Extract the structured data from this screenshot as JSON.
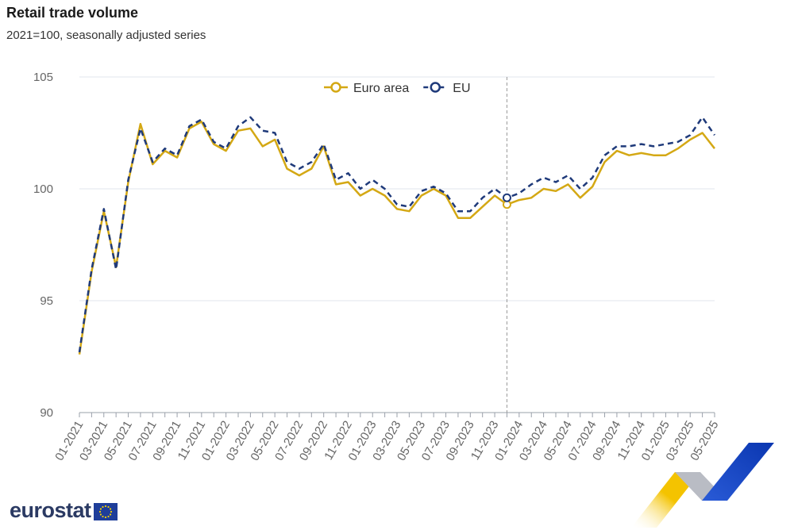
{
  "chart_data": {
    "type": "line",
    "title": "Retail trade volume",
    "subtitle": "2021=100, seasonally adjusted series",
    "xlabel": "",
    "ylabel": "",
    "ylim": [
      90,
      105
    ],
    "yticks": [
      90,
      95,
      100,
      105
    ],
    "grid": true,
    "legend_position": "top-center",
    "x": [
      "01-2021",
      "02-2021",
      "03-2021",
      "04-2021",
      "05-2021",
      "06-2021",
      "07-2021",
      "08-2021",
      "09-2021",
      "10-2021",
      "11-2021",
      "12-2021",
      "01-2022",
      "02-2022",
      "03-2022",
      "04-2022",
      "05-2022",
      "06-2022",
      "07-2022",
      "08-2022",
      "09-2022",
      "10-2022",
      "11-2022",
      "12-2022",
      "01-2023",
      "02-2023",
      "03-2023",
      "04-2023",
      "05-2023",
      "06-2023",
      "07-2023",
      "08-2023",
      "09-2023",
      "10-2023",
      "11-2023",
      "12-2023",
      "01-2024",
      "02-2024",
      "03-2024",
      "04-2024",
      "05-2024",
      "06-2024",
      "07-2024",
      "08-2024",
      "09-2024",
      "10-2024",
      "11-2024",
      "12-2024",
      "01-2025",
      "02-2025",
      "03-2025",
      "04-2025",
      "05-2025"
    ],
    "xtick_labels": [
      "01-2021",
      "03-2021",
      "05-2021",
      "07-2021",
      "09-2021",
      "11-2021",
      "01-2022",
      "03-2022",
      "05-2022",
      "07-2022",
      "09-2022",
      "11-2022",
      "01-2023",
      "03-2023",
      "05-2023",
      "07-2023",
      "09-2023",
      "11-2023",
      "01-2024",
      "03-2024",
      "05-2024",
      "07-2024",
      "09-2024",
      "11-2024",
      "01-2025",
      "03-2025",
      "05-2025"
    ],
    "highlight_index": 35,
    "series": [
      {
        "name": "Euro area",
        "color": "#d4a814",
        "dash": false,
        "values": [
          92.6,
          96.3,
          99.0,
          96.5,
          100.3,
          102.9,
          101.1,
          101.7,
          101.4,
          102.7,
          103.0,
          102.0,
          101.7,
          102.6,
          102.7,
          101.9,
          102.2,
          100.9,
          100.6,
          100.9,
          101.9,
          100.2,
          100.3,
          99.7,
          100.0,
          99.7,
          99.1,
          99.0,
          99.7,
          100.0,
          99.7,
          98.7,
          98.7,
          99.2,
          99.7,
          99.3,
          99.5,
          99.6,
          100.0,
          99.9,
          100.2,
          99.6,
          100.1,
          101.2,
          101.7,
          101.5,
          101.6,
          101.5,
          101.5,
          101.8,
          102.2,
          102.5,
          101.8
        ]
      },
      {
        "name": "EU",
        "color": "#1f3a7a",
        "dash": true,
        "values": [
          92.7,
          96.4,
          99.1,
          96.4,
          100.4,
          102.7,
          101.2,
          101.8,
          101.5,
          102.8,
          103.1,
          102.1,
          101.8,
          102.8,
          103.2,
          102.6,
          102.5,
          101.2,
          100.9,
          101.2,
          102.0,
          100.4,
          100.7,
          100.0,
          100.4,
          100.0,
          99.3,
          99.2,
          99.9,
          100.1,
          99.8,
          99.0,
          99.0,
          99.6,
          100.0,
          99.6,
          99.8,
          100.2,
          100.5,
          100.3,
          100.6,
          100.0,
          100.5,
          101.5,
          101.9,
          101.9,
          102.0,
          101.9,
          102.0,
          102.1,
          102.4,
          103.2,
          102.4
        ]
      }
    ]
  },
  "footer": {
    "logo_text": "eurostat"
  }
}
